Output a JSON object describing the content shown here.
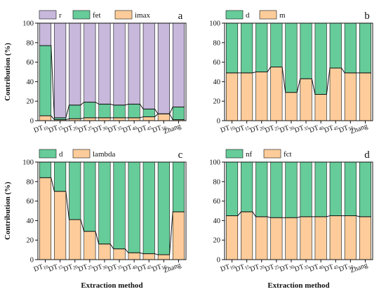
{
  "figure": {
    "y_axis_label": "Contribution (%)",
    "x_axis_label": "Extraction method"
  },
  "chart_data": [
    {
      "panel": "a",
      "type": "bar",
      "stacked": true,
      "categories": [
        "DT10",
        "DT15",
        "DT20",
        "DT25",
        "DT30",
        "DT35",
        "DT40",
        "DT45",
        "DT50",
        "Zhang"
      ],
      "category_labels": [
        [
          "DT",
          "10"
        ],
        [
          "DT",
          "15"
        ],
        [
          "DT",
          "20"
        ],
        [
          "DT",
          "25"
        ],
        [
          "DT",
          "30"
        ],
        [
          "DT",
          "35"
        ],
        [
          "DT",
          "40"
        ],
        [
          "DT",
          "45"
        ],
        [
          "DT",
          "50"
        ],
        [
          "Zhang",
          ""
        ]
      ],
      "series": [
        {
          "name": "imax",
          "color": "#fdcc9a",
          "values": [
            5,
            1,
            2,
            3,
            3,
            3,
            3,
            4,
            7,
            1
          ]
        },
        {
          "name": "fet",
          "color": "#66cc99",
          "values": [
            72,
            2,
            14,
            16,
            14,
            13,
            14,
            8,
            0,
            13
          ]
        },
        {
          "name": "r",
          "color": "#c7b8dc",
          "values": [
            23,
            97,
            84,
            81,
            83,
            84,
            83,
            88,
            93,
            86
          ]
        }
      ],
      "legend_order": [
        "r",
        "fet",
        "imax"
      ],
      "ylabel": "Contribution (%)",
      "xlabel": "",
      "ylim": [
        0,
        100
      ],
      "yticks": [
        0,
        20,
        40,
        60,
        80,
        100
      ],
      "grid": false,
      "legend": "top-left"
    },
    {
      "panel": "b",
      "type": "bar",
      "stacked": true,
      "categories": [
        "DT10",
        "DT15",
        "DT20",
        "DT25",
        "DT30",
        "DT35",
        "DT40",
        "DT45",
        "DT50",
        "Zhang"
      ],
      "category_labels": [
        [
          "DT",
          "10"
        ],
        [
          "DT",
          "15"
        ],
        [
          "DT",
          "20"
        ],
        [
          "DT",
          "25"
        ],
        [
          "DT",
          "30"
        ],
        [
          "DT",
          "35"
        ],
        [
          "DT",
          "40"
        ],
        [
          "DT",
          "45"
        ],
        [
          "DT",
          "50"
        ],
        [
          "Zhang",
          ""
        ]
      ],
      "series": [
        {
          "name": "m",
          "color": "#fdcc9a",
          "values": [
            49,
            49,
            50,
            55,
            29,
            43,
            27,
            54,
            49,
            49
          ]
        },
        {
          "name": "d",
          "color": "#66cc99",
          "values": [
            51,
            51,
            50,
            45,
            71,
            57,
            73,
            46,
            51,
            51
          ]
        }
      ],
      "legend_order": [
        "d",
        "m"
      ],
      "ylabel": "",
      "xlabel": "",
      "ylim": [
        0,
        100
      ],
      "yticks": [
        0,
        20,
        40,
        60,
        80,
        100
      ],
      "grid": false,
      "legend": "top-left"
    },
    {
      "panel": "c",
      "type": "bar",
      "stacked": true,
      "categories": [
        "DT10",
        "DT15",
        "DT20",
        "DT25",
        "DT30",
        "DT35",
        "DT40",
        "DT45",
        "DT50",
        "Zhang"
      ],
      "category_labels": [
        [
          "DT",
          "10"
        ],
        [
          "DT",
          "15"
        ],
        [
          "DT",
          "20"
        ],
        [
          "DT",
          "25"
        ],
        [
          "DT",
          "30"
        ],
        [
          "DT",
          "35"
        ],
        [
          "DT",
          "40"
        ],
        [
          "DT",
          "45"
        ],
        [
          "DT",
          "50"
        ],
        [
          "Zhang",
          ""
        ]
      ],
      "series": [
        {
          "name": "lambda",
          "color": "#fdcc9a",
          "values": [
            84,
            70,
            41,
            29,
            16,
            11,
            7,
            6,
            5,
            49
          ]
        },
        {
          "name": "d",
          "color": "#66cc99",
          "values": [
            16,
            30,
            59,
            71,
            84,
            89,
            93,
            94,
            95,
            51
          ]
        }
      ],
      "legend_order": [
        "d",
        "lambda"
      ],
      "ylabel": "Contribution (%)",
      "xlabel": "Extraction method",
      "ylim": [
        0,
        100
      ],
      "yticks": [
        0,
        20,
        40,
        60,
        80,
        100
      ],
      "grid": false,
      "legend": "top-left"
    },
    {
      "panel": "d",
      "type": "bar",
      "stacked": true,
      "categories": [
        "DT10",
        "DT15",
        "DT20",
        "DT25",
        "DT30",
        "DT35",
        "DT40",
        "DT45",
        "DT50",
        "Zhang"
      ],
      "category_labels": [
        [
          "DT",
          "10"
        ],
        [
          "DT",
          "15"
        ],
        [
          "DT",
          "20"
        ],
        [
          "DT",
          "25"
        ],
        [
          "DT",
          "30"
        ],
        [
          "DT",
          "35"
        ],
        [
          "DT",
          "40"
        ],
        [
          "DT",
          "45"
        ],
        [
          "DT",
          "50"
        ],
        [
          "Zhang",
          ""
        ]
      ],
      "series": [
        {
          "name": "fct",
          "color": "#fdcc9a",
          "values": [
            45,
            49,
            44,
            43,
            43,
            44,
            44,
            45,
            45,
            44
          ]
        },
        {
          "name": "nf",
          "color": "#66cc99",
          "values": [
            55,
            51,
            56,
            57,
            57,
            56,
            56,
            55,
            55,
            56
          ]
        }
      ],
      "legend_order": [
        "nf",
        "fct"
      ],
      "ylabel": "",
      "xlabel": "Extraction method",
      "ylim": [
        0,
        100
      ],
      "yticks": [
        0,
        20,
        40,
        60,
        80,
        100
      ],
      "grid": false,
      "legend": "top-left"
    }
  ]
}
